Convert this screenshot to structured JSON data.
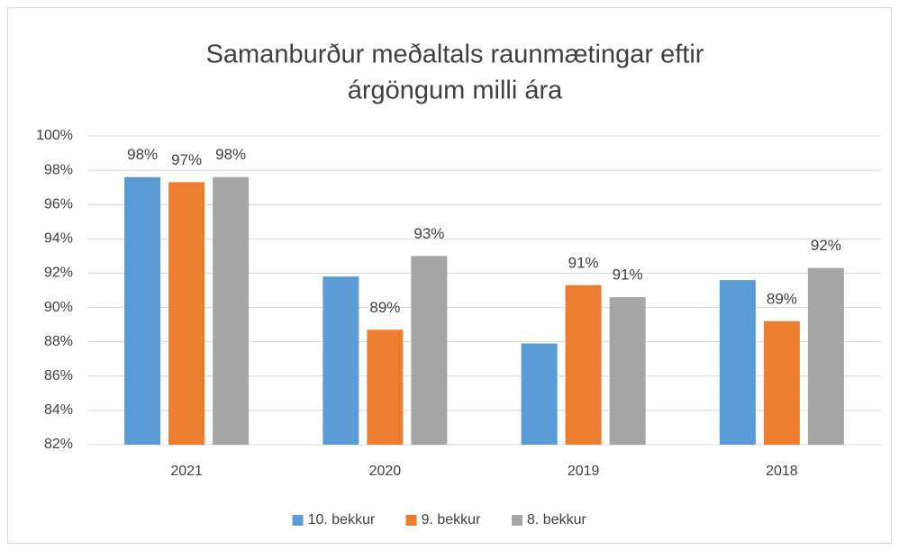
{
  "chart_data": {
    "type": "bar",
    "title": [
      "Samanburður meðaltals raunmætingar eftir",
      "árgöngum milli ára"
    ],
    "categories": [
      "2021",
      "2020",
      "2019",
      "2018"
    ],
    "series": [
      {
        "name": "10. bekkur",
        "color": "#5b9bd5",
        "values": [
          97.6,
          91.8,
          87.9,
          91.6
        ],
        "value_labels": [
          "98%",
          null,
          null,
          null
        ]
      },
      {
        "name": "9. bekkur",
        "color": "#ed7d31",
        "values": [
          97.3,
          88.7,
          91.3,
          89.2
        ],
        "value_labels": [
          "97%",
          "89%",
          "91%",
          "89%"
        ]
      },
      {
        "name": "8. bekkur",
        "color": "#a5a5a5",
        "values": [
          97.6,
          93.0,
          90.6,
          92.3
        ],
        "value_labels": [
          "98%",
          "93%",
          "91%",
          "92%"
        ]
      }
    ],
    "ylim": [
      82,
      100
    ],
    "yticks": [
      {
        "value": 82,
        "label": "82%"
      },
      {
        "value": 84,
        "label": "84%"
      },
      {
        "value": 86,
        "label": "86%"
      },
      {
        "value": 88,
        "label": "88%"
      },
      {
        "value": 90,
        "label": "90%"
      },
      {
        "value": 92,
        "label": "92%"
      },
      {
        "value": 94,
        "label": "94%"
      },
      {
        "value": 96,
        "label": "96%"
      },
      {
        "value": 98,
        "label": "98%"
      },
      {
        "value": 100,
        "label": "100%"
      }
    ],
    "grid": true,
    "legend": "bottom"
  }
}
